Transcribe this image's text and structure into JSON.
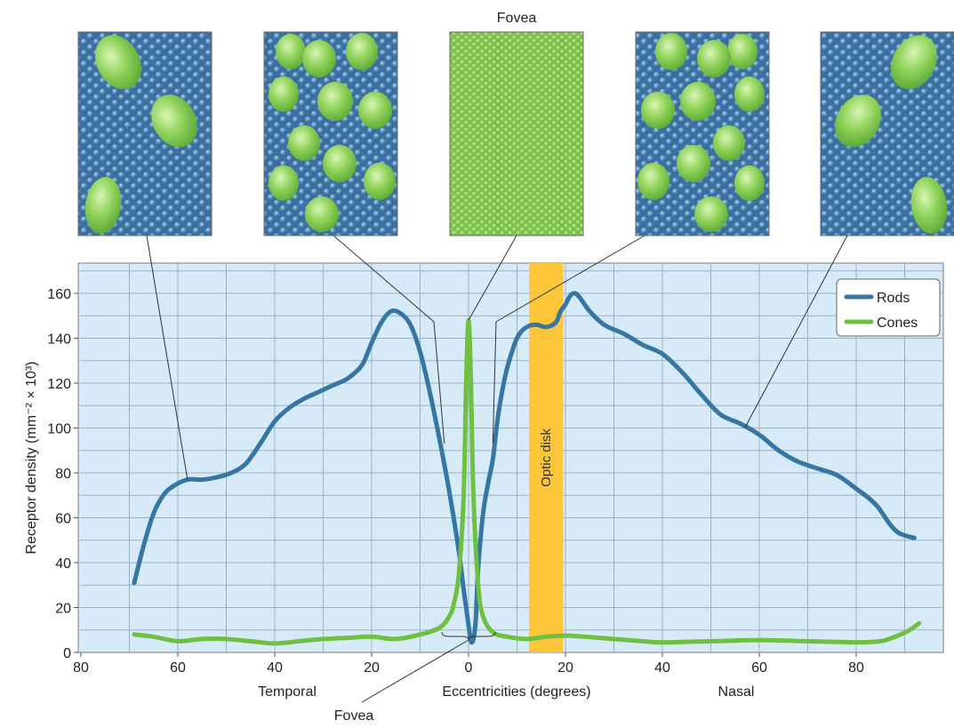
{
  "chart_data": {
    "type": "line",
    "title": "",
    "xlabel": "Eccentricities (degrees)",
    "ylabel": "Receptor density (mm⁻² × 10³)",
    "xlim": [
      -80,
      95
    ],
    "ylim": [
      0,
      170
    ],
    "x_tick_values": [
      -80,
      -60,
      -40,
      -20,
      0,
      20,
      40,
      60,
      80
    ],
    "x_tick_labels": [
      "80",
      "60",
      "40",
      "20",
      "0",
      "20",
      "40",
      "60",
      "80"
    ],
    "y_ticks": [
      0,
      20,
      40,
      60,
      80,
      100,
      120,
      140,
      160
    ],
    "grid": true,
    "legend_position": "top-right",
    "region_labels": {
      "temporal": "Temporal",
      "nasal": "Nasal"
    },
    "top_label": "Fovea",
    "bottom_label": "Fovea",
    "optic_disk": {
      "label": "Optic disk",
      "x_range": [
        12.5,
        19.5
      ],
      "color": "#fcc53a"
    },
    "series": [
      {
        "name": "Rods",
        "color": "#3576a5",
        "points": [
          [
            -69,
            31
          ],
          [
            -67,
            48
          ],
          [
            -65,
            62
          ],
          [
            -63,
            70
          ],
          [
            -61,
            74
          ],
          [
            -58,
            77
          ],
          [
            -55,
            77
          ],
          [
            -52,
            78
          ],
          [
            -49,
            80
          ],
          [
            -46,
            84
          ],
          [
            -43,
            93
          ],
          [
            -40,
            103
          ],
          [
            -37,
            109
          ],
          [
            -34,
            113
          ],
          [
            -31,
            116
          ],
          [
            -28,
            119
          ],
          [
            -25,
            122
          ],
          [
            -22,
            128
          ],
          [
            -20,
            138
          ],
          [
            -18,
            147
          ],
          [
            -16,
            152
          ],
          [
            -14,
            151
          ],
          [
            -12,
            146
          ],
          [
            -10,
            134
          ],
          [
            -8,
            116
          ],
          [
            -6,
            95
          ],
          [
            -4,
            72
          ],
          [
            -2,
            45
          ],
          [
            -1,
            28
          ],
          [
            0,
            12
          ],
          [
            0.5,
            5
          ],
          [
            1,
            6
          ],
          [
            1.5,
            15
          ],
          [
            2,
            38
          ],
          [
            3,
            62
          ],
          [
            4,
            75
          ],
          [
            5,
            86
          ],
          [
            6,
            104
          ],
          [
            7,
            117
          ],
          [
            8,
            127
          ],
          [
            10,
            140
          ],
          [
            12,
            145
          ],
          [
            14,
            146
          ],
          [
            16,
            145
          ],
          [
            18,
            147
          ],
          [
            19,
            152
          ],
          [
            20,
            155
          ],
          [
            21,
            159
          ],
          [
            22,
            160
          ],
          [
            23,
            158
          ],
          [
            25,
            152
          ],
          [
            28,
            146
          ],
          [
            32,
            142
          ],
          [
            36,
            137
          ],
          [
            40,
            133
          ],
          [
            44,
            125
          ],
          [
            48,
            115
          ],
          [
            52,
            106
          ],
          [
            56,
            102
          ],
          [
            60,
            97
          ],
          [
            64,
            90
          ],
          [
            68,
            85
          ],
          [
            72,
            82
          ],
          [
            76,
            79
          ],
          [
            80,
            73
          ],
          [
            84,
            66
          ],
          [
            87,
            57
          ],
          [
            89,
            53
          ],
          [
            92,
            51
          ]
        ]
      },
      {
        "name": "Cones",
        "color": "#6fc041",
        "points": [
          [
            -69,
            8
          ],
          [
            -65,
            7
          ],
          [
            -60,
            5
          ],
          [
            -55,
            6
          ],
          [
            -50,
            6
          ],
          [
            -45,
            5
          ],
          [
            -40,
            4
          ],
          [
            -35,
            5
          ],
          [
            -30,
            6
          ],
          [
            -25,
            6.5
          ],
          [
            -20,
            7
          ],
          [
            -15,
            6
          ],
          [
            -10,
            8
          ],
          [
            -6,
            11
          ],
          [
            -4,
            16
          ],
          [
            -3,
            22
          ],
          [
            -2,
            35
          ],
          [
            -1,
            70
          ],
          [
            -0.5,
            120
          ],
          [
            0,
            148
          ],
          [
            0.5,
            120
          ],
          [
            1,
            70
          ],
          [
            2,
            30
          ],
          [
            3,
            16
          ],
          [
            5,
            9
          ],
          [
            8,
            7
          ],
          [
            12,
            6
          ],
          [
            16,
            7
          ],
          [
            20,
            7.5
          ],
          [
            24,
            7
          ],
          [
            30,
            6
          ],
          [
            36,
            5
          ],
          [
            40,
            4.5
          ],
          [
            50,
            5
          ],
          [
            60,
            5.5
          ],
          [
            70,
            5
          ],
          [
            80,
            4.5
          ],
          [
            85,
            5
          ],
          [
            88,
            7
          ],
          [
            91,
            10
          ],
          [
            93,
            13
          ]
        ]
      }
    ],
    "inset_panels": [
      {
        "id": "panel-1",
        "cone_count": 3,
        "link_x": -58,
        "link_y": 77
      },
      {
        "id": "panel-2",
        "cone_count": 10,
        "link_x": -5,
        "link_y": 93
      },
      {
        "id": "panel-3",
        "cone_count": 0,
        "link_x": 0,
        "link_y": 148
      },
      {
        "id": "panel-4",
        "cone_count": 10,
        "link_x": 5,
        "link_y": 93
      },
      {
        "id": "panel-5",
        "cone_count": 3,
        "link_x": 57,
        "link_y": 100
      }
    ]
  }
}
